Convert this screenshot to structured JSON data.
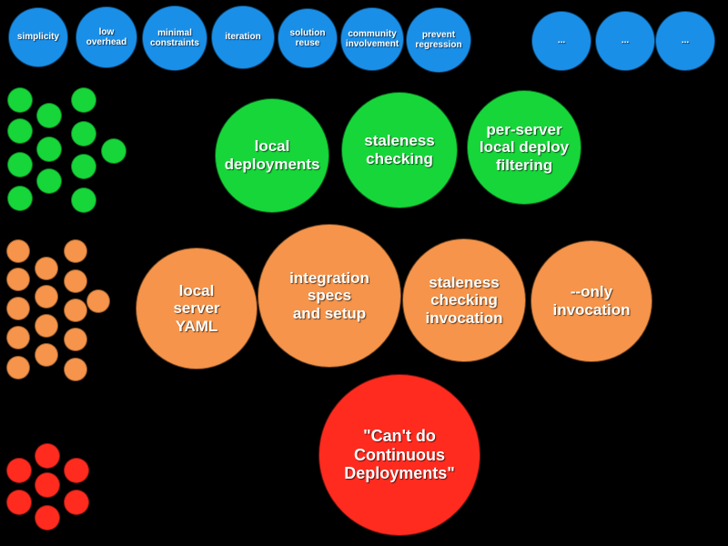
{
  "colors": {
    "values": "#1a8fe8",
    "features": "#17d63a",
    "tasks": "#f5944a",
    "problem": "#ff2b1f"
  },
  "values": [
    "simplicity",
    "low\noverhead",
    "minimal\nconstraints",
    "iteration",
    "solution\nreuse",
    "community\ninvolvement",
    "prevent\nregression",
    "...",
    "...",
    "..."
  ],
  "features": [
    "local\ndeployments",
    "staleness\nchecking",
    "per-server\nlocal deploy\nfiltering"
  ],
  "tasks": [
    "local\nserver\nYAML",
    "integration\nspecs\nand setup",
    "staleness\nchecking\ninvocation",
    "--only\ninvocation"
  ],
  "problem": "\"Can't do\nContinuous\nDeployments\""
}
